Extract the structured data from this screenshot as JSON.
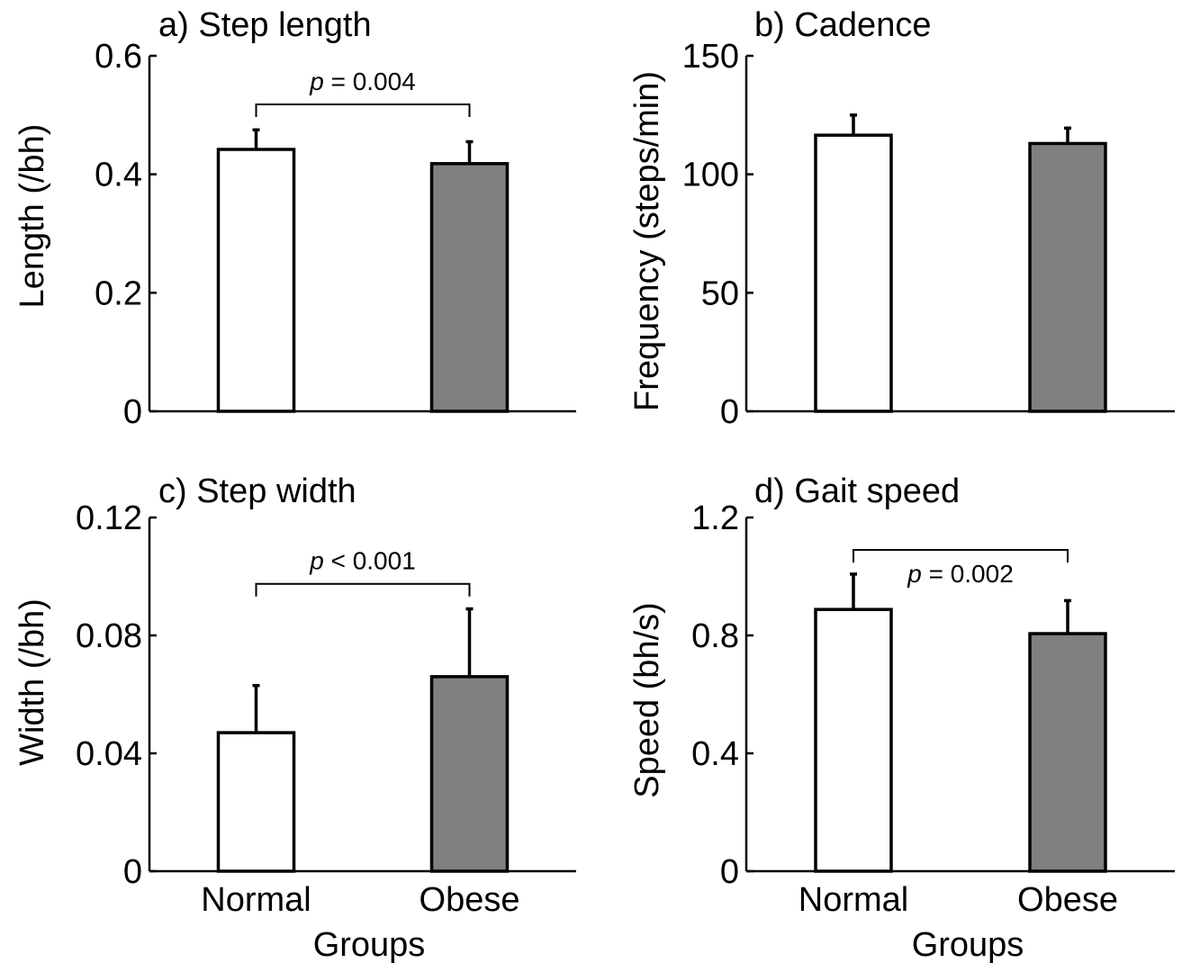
{
  "chart_data": [
    {
      "type": "bar",
      "title": "a) Step length",
      "ylabel": "Length (/bh)",
      "xlabel": "",
      "categories": [
        "Normal",
        "Obese"
      ],
      "series": [
        {
          "values": [
            0.442,
            0.418
          ],
          "errors": [
            0.033,
            0.037
          ],
          "colors": [
            "#ffffff",
            "#808080"
          ]
        }
      ],
      "ylim": [
        0,
        0.6
      ],
      "yticks": [
        "0",
        "0.2",
        "0.4",
        "0.6"
      ],
      "yticks_values": [
        0,
        0.2,
        0.4,
        0.6
      ],
      "show_category_labels": false,
      "annotation": {
        "p_symbol": "p",
        "text": " = 0.004",
        "between": [
          0,
          1
        ],
        "bracket_y": 0.518,
        "label_position": "above"
      }
    },
    {
      "type": "bar",
      "title": "b) Cadence",
      "ylabel": "Frequency (steps/min)",
      "xlabel": "",
      "categories": [
        "Normal",
        "Obese"
      ],
      "series": [
        {
          "values": [
            116.5,
            113
          ],
          "errors": [
            8.5,
            6.5
          ],
          "colors": [
            "#ffffff",
            "#808080"
          ]
        }
      ],
      "ylim": [
        0,
        150
      ],
      "yticks": [
        "0",
        "50",
        "100",
        "150"
      ],
      "yticks_values": [
        0,
        50,
        100,
        150
      ],
      "show_category_labels": false,
      "annotation": null
    },
    {
      "type": "bar",
      "title": "c) Step width",
      "ylabel": "Width (/bh)",
      "xlabel": "",
      "categories": [
        "Normal",
        "Obese"
      ],
      "series": [
        {
          "values": [
            0.047,
            0.066
          ],
          "errors": [
            0.016,
            0.023
          ],
          "colors": [
            "#ffffff",
            "#808080"
          ]
        }
      ],
      "ylim": [
        0,
        0.12
      ],
      "yticks": [
        "0",
        "0.04",
        "0.08",
        "0.12"
      ],
      "yticks_values": [
        0,
        0.04,
        0.08,
        0.12
      ],
      "show_category_labels": true,
      "annotation": {
        "p_symbol": "p",
        "text": " < 0.001",
        "between": [
          0,
          1
        ],
        "bracket_y": 0.0975,
        "label_position": "above"
      }
    },
    {
      "type": "bar",
      "title": "d) Gait speed",
      "ylabel": "Speed (bh/s)",
      "xlabel": "",
      "categories": [
        "Normal",
        "Obese"
      ],
      "series": [
        {
          "values": [
            0.888,
            0.806
          ],
          "errors": [
            0.12,
            0.112
          ],
          "colors": [
            "#ffffff",
            "#808080"
          ]
        }
      ],
      "ylim": [
        0,
        1.2
      ],
      "yticks": [
        "0",
        "0.4",
        "0.8",
        "1.2"
      ],
      "yticks_values": [
        0,
        0.4,
        0.8,
        1.2
      ],
      "show_category_labels": true,
      "annotation": {
        "p_symbol": "p",
        "text": " = 0.002",
        "between": [
          0,
          1
        ],
        "bracket_y": 1.09,
        "label_position": "below"
      }
    }
  ],
  "shared_xlabel": "Groups"
}
